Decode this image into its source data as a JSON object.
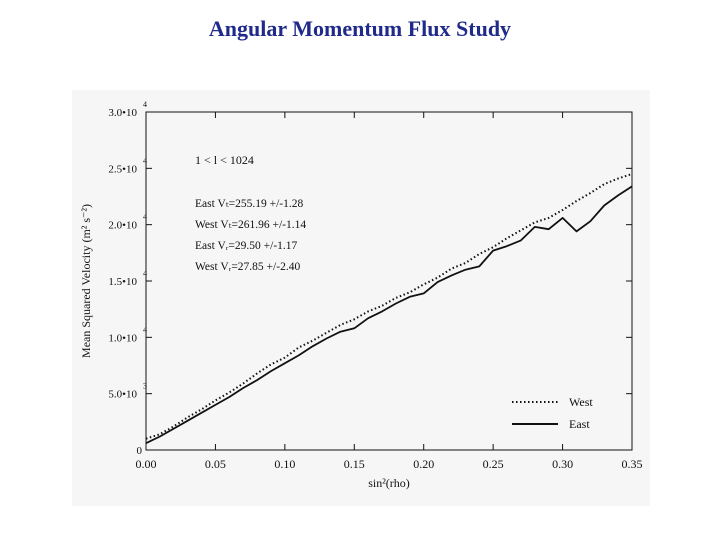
{
  "page": {
    "title": "Angular Momentum Flux Study"
  },
  "chart_data": {
    "type": "line",
    "xlabel": "sin²(rho)",
    "ylabel": "Mean Squared Velocity (m² s⁻²)",
    "xlim": [
      0.0,
      0.35
    ],
    "ylim": [
      0,
      30000
    ],
    "x_ticks": [
      {
        "value": 0.0,
        "label": "0.00"
      },
      {
        "value": 0.05,
        "label": "0.05"
      },
      {
        "value": 0.1,
        "label": "0.10"
      },
      {
        "value": 0.15,
        "label": "0.15"
      },
      {
        "value": 0.2,
        "label": "0.20"
      },
      {
        "value": 0.25,
        "label": "0.25"
      },
      {
        "value": 0.3,
        "label": "0.30"
      },
      {
        "value": 0.35,
        "label": "0.35"
      }
    ],
    "y_ticks": [
      {
        "value": 0,
        "mant": "0",
        "exp": ""
      },
      {
        "value": 5000,
        "mant": "5.0•10",
        "exp": "3"
      },
      {
        "value": 10000,
        "mant": "1.0•10",
        "exp": "4"
      },
      {
        "value": 15000,
        "mant": "1.5•10",
        "exp": "4"
      },
      {
        "value": 20000,
        "mant": "2.0•10",
        "exp": "4"
      },
      {
        "value": 25000,
        "mant": "2.5•10",
        "exp": "4"
      },
      {
        "value": 30000,
        "mant": "3.0•10",
        "exp": "4"
      }
    ],
    "annotations": [
      "1 < l < 1024",
      "East Vₜ=255.19 +/-1.28",
      "West Vₜ=261.96 +/-1.14",
      "East Vᵣ=29.50 +/-1.17",
      "West Vᵣ=27.85 +/-2.40"
    ],
    "legend_position": "bottom-right",
    "series": [
      {
        "name": "West",
        "style": "dotted",
        "color": "#111111",
        "x": [
          0.0,
          0.01,
          0.02,
          0.03,
          0.04,
          0.05,
          0.06,
          0.07,
          0.08,
          0.09,
          0.1,
          0.11,
          0.12,
          0.13,
          0.14,
          0.15,
          0.16,
          0.17,
          0.18,
          0.19,
          0.2,
          0.21,
          0.22,
          0.23,
          0.24,
          0.25,
          0.26,
          0.27,
          0.28,
          0.29,
          0.3,
          0.31,
          0.32,
          0.33,
          0.34,
          0.35
        ],
        "y": [
          1000,
          1400,
          2100,
          2900,
          3600,
          4400,
          5100,
          5900,
          6800,
          7600,
          8200,
          9100,
          9700,
          10400,
          11100,
          11600,
          12300,
          12800,
          13500,
          14000,
          14700,
          15300,
          16100,
          16600,
          17400,
          18000,
          18800,
          19500,
          20200,
          20600,
          21300,
          22100,
          22800,
          23600,
          24100,
          24500
        ]
      },
      {
        "name": "East",
        "style": "solid",
        "color": "#111111",
        "x": [
          0.0,
          0.01,
          0.02,
          0.03,
          0.04,
          0.05,
          0.06,
          0.07,
          0.08,
          0.09,
          0.1,
          0.11,
          0.12,
          0.13,
          0.14,
          0.15,
          0.16,
          0.17,
          0.18,
          0.19,
          0.2,
          0.21,
          0.22,
          0.23,
          0.24,
          0.25,
          0.26,
          0.27,
          0.28,
          0.29,
          0.3,
          0.31,
          0.32,
          0.33,
          0.34,
          0.35
        ],
        "y": [
          600,
          1200,
          1900,
          2600,
          3300,
          4000,
          4700,
          5500,
          6200,
          7000,
          7700,
          8400,
          9200,
          9900,
          10500,
          10800,
          11700,
          12300,
          13000,
          13600,
          13900,
          14900,
          15500,
          16000,
          16300,
          17700,
          18100,
          18600,
          19800,
          19600,
          20600,
          19400,
          20300,
          21700,
          22600,
          23400
        ]
      }
    ]
  }
}
